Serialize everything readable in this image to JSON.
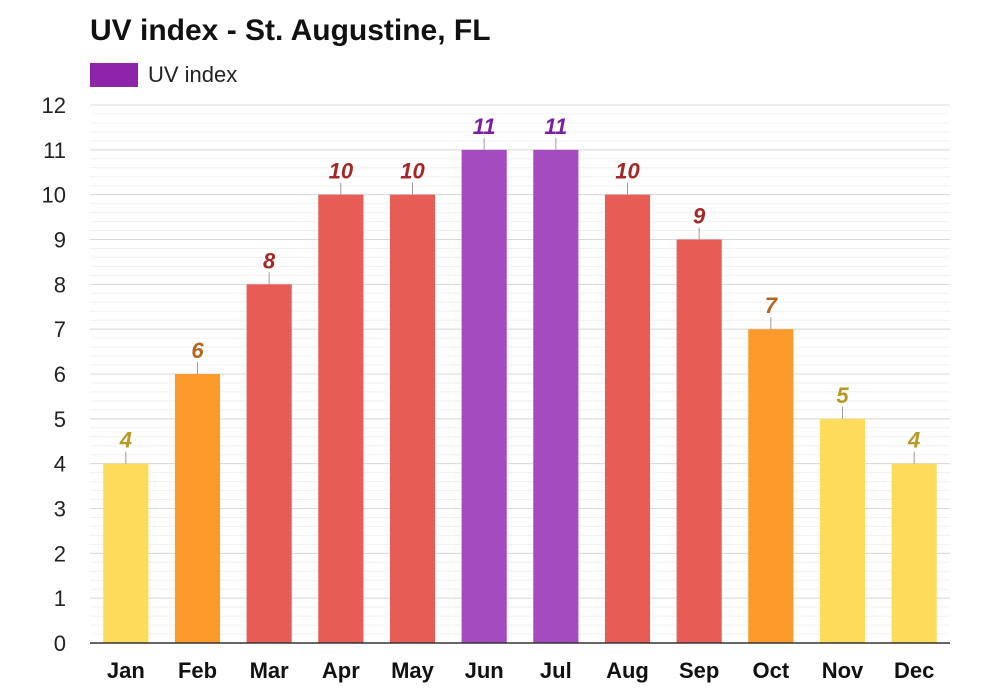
{
  "chart_data": {
    "type": "bar",
    "title": "UV index - St. Augustine, FL",
    "xlabel": "",
    "ylabel": "",
    "ylim": [
      0,
      12
    ],
    "yticks": [
      "0",
      "1",
      "2",
      "3",
      "4",
      "5",
      "6",
      "7",
      "8",
      "9",
      "10",
      "11",
      "12"
    ],
    "grid": true,
    "legend_position": "top-left",
    "categories": [
      "Jan",
      "Feb",
      "Mar",
      "Apr",
      "May",
      "Jun",
      "Jul",
      "Aug",
      "Sep",
      "Oct",
      "Nov",
      "Dec"
    ],
    "series": [
      {
        "name": "UV index",
        "values": [
          4,
          6,
          8,
          10,
          10,
          11,
          11,
          10,
          9,
          7,
          5,
          4
        ],
        "legend_color": "#8e24aa"
      }
    ],
    "bar_colors": [
      "#fcdc5a",
      "#fa9b2c",
      "#e85c56",
      "#e85c56",
      "#e85c56",
      "#a44cbf",
      "#a44cbf",
      "#e85c56",
      "#e85c56",
      "#fa9b2c",
      "#fcdc5a",
      "#fcdc5a"
    ],
    "label_colors": [
      "#b69a24",
      "#b5651d",
      "#a42828",
      "#a42828",
      "#a42828",
      "#7b1fa2",
      "#7b1fa2",
      "#a42828",
      "#a42828",
      "#b5651d",
      "#b69a24",
      "#b69a24"
    ]
  }
}
